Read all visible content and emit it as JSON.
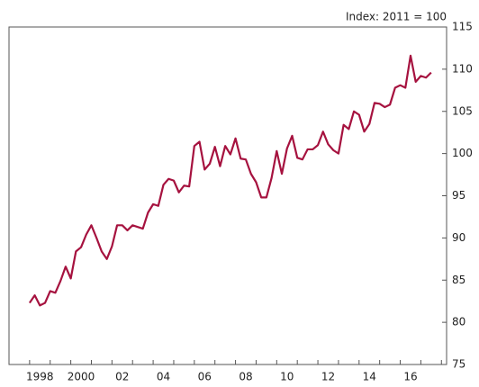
{
  "chart_data": {
    "type": "line",
    "annotation": "Index: 2011 = 100",
    "x": [
      1998,
      1998.25,
      1998.5,
      1998.75,
      1999,
      1999.25,
      1999.5,
      1999.75,
      2000,
      2000.25,
      2000.5,
      2000.75,
      2001,
      2001.25,
      2001.5,
      2001.75,
      2002,
      2002.25,
      2002.5,
      2002.75,
      2003,
      2003.25,
      2003.5,
      2003.75,
      2004,
      2004.25,
      2004.5,
      2004.75,
      2005,
      2005.25,
      2005.5,
      2005.75,
      2006,
      2006.25,
      2006.5,
      2006.75,
      2007,
      2007.25,
      2007.5,
      2007.75,
      2008,
      2008.25,
      2008.5,
      2008.75,
      2009,
      2009.25,
      2009.5,
      2009.75,
      2010,
      2010.25,
      2010.5,
      2010.75,
      2011,
      2011.25,
      2011.5,
      2011.75,
      2012,
      2012.25,
      2012.5,
      2012.75,
      2013,
      2013.25,
      2013.5,
      2013.75,
      2014,
      2014.25,
      2014.5,
      2014.75,
      2015,
      2015.25,
      2015.5,
      2015.75,
      2016,
      2016.25,
      2016.5,
      2016.75,
      2017,
      2017.25,
      2017.5
    ],
    "series": [
      {
        "color": "#a6123f",
        "values": [
          82.3,
          83.2,
          82.0,
          82.3,
          83.7,
          83.5,
          84.9,
          86.6,
          85.2,
          88.4,
          88.9,
          90.4,
          91.5,
          90.0,
          88.4,
          87.5,
          89.0,
          91.5,
          91.5,
          90.9,
          91.5,
          91.3,
          91.1,
          93.0,
          94.0,
          93.8,
          96.3,
          97.0,
          96.8,
          95.4,
          96.2,
          96.1,
          100.9,
          101.4,
          98.1,
          98.8,
          100.8,
          98.5,
          100.9,
          99.9,
          101.8,
          99.4,
          99.3,
          97.6,
          96.6,
          94.8,
          94.8,
          97.1,
          100.3,
          97.6,
          100.6,
          102.1,
          99.5,
          99.3,
          100.5,
          100.5,
          101.0,
          102.6,
          101.1,
          100.4,
          100.0,
          103.4,
          102.9,
          105.0,
          104.6,
          102.6,
          103.5,
          106.0,
          105.9,
          105.5,
          105.8,
          107.8,
          108.1,
          107.8,
          111.6,
          108.5,
          109.2,
          109.0,
          109.6
        ]
      }
    ],
    "xlim": [
      1997,
      2018.25
    ],
    "xticks": [
      {
        "value": 1998.5,
        "label": "1998"
      },
      {
        "value": 2000.5,
        "label": "2000"
      },
      {
        "value": 2002.5,
        "label": "02"
      },
      {
        "value": 2004.5,
        "label": "04"
      },
      {
        "value": 2006.5,
        "label": "06"
      },
      {
        "value": 2008.5,
        "label": "08"
      },
      {
        "value": 2010.5,
        "label": "10"
      },
      {
        "value": 2012.5,
        "label": "12"
      },
      {
        "value": 2014.5,
        "label": "14"
      },
      {
        "value": 2016.5,
        "label": "16"
      }
    ],
    "xminorticks": [
      1998,
      1999,
      2000,
      2001,
      2002,
      2003,
      2004,
      2005,
      2006,
      2007,
      2008,
      2009,
      2010,
      2011,
      2012,
      2013,
      2014,
      2015,
      2016,
      2017,
      2018
    ],
    "ylim": [
      75,
      115
    ],
    "yticks": [
      75,
      80,
      85,
      90,
      95,
      100,
      105,
      110,
      115
    ]
  }
}
